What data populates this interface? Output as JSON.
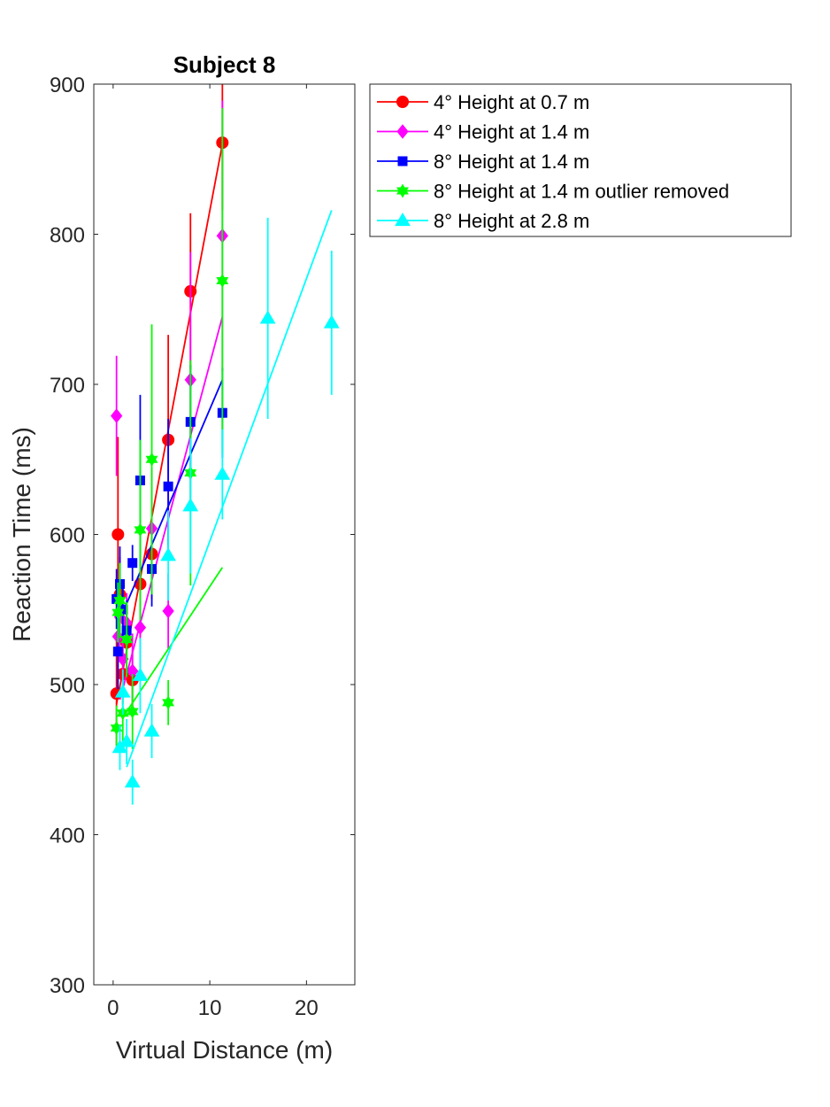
{
  "chart_data": {
    "type": "scatter",
    "title": "Subject 8",
    "xlabel": "Virtual Distance (m)",
    "ylabel": "Reaction Time (ms)",
    "xlim": [
      -2,
      25
    ],
    "ylim": [
      300,
      900
    ],
    "xticks": [
      0,
      10,
      20
    ],
    "yticks": [
      300,
      400,
      500,
      600,
      700,
      800,
      900
    ],
    "grid": false,
    "legend_position": "outside-top-right",
    "series": [
      {
        "name": "4° Height at 0.7 m",
        "color": "#ff0000",
        "marker": "circle",
        "points": [
          {
            "x": 0.35,
            "y": 494,
            "err": 35
          },
          {
            "x": 0.5,
            "y": 600,
            "err": 65
          },
          {
            "x": 0.7,
            "y": 560,
            "err": 25
          },
          {
            "x": 1.0,
            "y": 507,
            "err": 20
          },
          {
            "x": 1.4,
            "y": 528,
            "err": 25
          },
          {
            "x": 2.0,
            "y": 503,
            "err": 20
          },
          {
            "x": 2.8,
            "y": 567,
            "err": 35
          },
          {
            "x": 4.0,
            "y": 587,
            "err": 30
          },
          {
            "x": 5.7,
            "y": 663,
            "err": 70
          },
          {
            "x": 8.0,
            "y": 762,
            "err": 52
          },
          {
            "x": 11.3,
            "y": 861,
            "err": 45
          }
        ],
        "fit": {
          "x": [
            0.35,
            11.3
          ],
          "y": [
            487,
            860
          ]
        }
      },
      {
        "name": "4° Height at 1.4 m",
        "color": "#ff00ff",
        "marker": "diamond",
        "points": [
          {
            "x": 0.35,
            "y": 679,
            "err": 40
          },
          {
            "x": 0.5,
            "y": 532,
            "err": 25
          },
          {
            "x": 0.7,
            "y": 545,
            "err": 30
          },
          {
            "x": 1.0,
            "y": 517,
            "err": 20
          },
          {
            "x": 1.4,
            "y": 541,
            "err": 20
          },
          {
            "x": 2.0,
            "y": 509,
            "err": 25
          },
          {
            "x": 2.8,
            "y": 538,
            "err": 30
          },
          {
            "x": 4.0,
            "y": 604,
            "err": 40
          },
          {
            "x": 5.7,
            "y": 549,
            "err": 25
          },
          {
            "x": 8.0,
            "y": 703,
            "err": 85
          },
          {
            "x": 11.3,
            "y": 799,
            "err": 90
          }
        ],
        "fit": {
          "x": [
            0.7,
            11.3
          ],
          "y": [
            490,
            745
          ]
        }
      },
      {
        "name": "8° Height at 1.4 m",
        "color": "#0000ff",
        "marker": "square",
        "points": [
          {
            "x": 0.35,
            "y": 557,
            "err": 20
          },
          {
            "x": 0.5,
            "y": 522,
            "err": 25
          },
          {
            "x": 0.7,
            "y": 567,
            "err": 25
          },
          {
            "x": 1.0,
            "y": 550,
            "err": 20
          },
          {
            "x": 1.4,
            "y": 536,
            "err": 20
          },
          {
            "x": 2.0,
            "y": 581,
            "err": 12
          },
          {
            "x": 2.8,
            "y": 636,
            "err": 57
          },
          {
            "x": 4.0,
            "y": 577,
            "err": 25
          },
          {
            "x": 5.7,
            "y": 632,
            "err": 45
          },
          {
            "x": 8.0,
            "y": 675,
            "err": 38
          },
          {
            "x": 11.3,
            "y": 681,
            "err": 30
          }
        ],
        "fit": {
          "x": [
            1.0,
            11.3
          ],
          "y": [
            548,
            703
          ]
        }
      },
      {
        "name": "8° Height at 1.4 m outlier removed",
        "color": "#00ff00",
        "marker": "hexagram",
        "points": [
          {
            "x": 0.35,
            "y": 471,
            "err": 15
          },
          {
            "x": 0.5,
            "y": 548,
            "err": 20
          },
          {
            "x": 0.7,
            "y": 556,
            "err": 25
          },
          {
            "x": 1.0,
            "y": 481,
            "err": 20
          },
          {
            "x": 1.4,
            "y": 530,
            "err": 25
          },
          {
            "x": 2.0,
            "y": 482,
            "err": 25
          },
          {
            "x": 2.8,
            "y": 603,
            "err": 60
          },
          {
            "x": 4.0,
            "y": 650,
            "err": 90
          },
          {
            "x": 5.7,
            "y": 488,
            "err": 15
          },
          {
            "x": 8.0,
            "y": 641,
            "err": 75
          },
          {
            "x": 11.3,
            "y": 769,
            "err": 115
          }
        ],
        "fit": {
          "x": [
            1.0,
            11.3
          ],
          "y": [
            478,
            578
          ]
        }
      },
      {
        "name": "8° Height at 2.8 m",
        "color": "#00ffff",
        "marker": "triangle",
        "points": [
          {
            "x": 0.7,
            "y": 458,
            "err": 15
          },
          {
            "x": 1.0,
            "y": 495,
            "err": 15
          },
          {
            "x": 1.4,
            "y": 462,
            "err": 15
          },
          {
            "x": 2.0,
            "y": 435,
            "err": 15
          },
          {
            "x": 2.8,
            "y": 506,
            "err": 25
          },
          {
            "x": 4.0,
            "y": 469,
            "err": 18
          },
          {
            "x": 5.7,
            "y": 586,
            "err": 30
          },
          {
            "x": 8.0,
            "y": 619,
            "err": 45
          },
          {
            "x": 11.3,
            "y": 640,
            "err": 30
          },
          {
            "x": 16.0,
            "y": 744,
            "err": 67
          },
          {
            "x": 22.6,
            "y": 741,
            "err": 48
          }
        ],
        "fit": {
          "x": [
            1.4,
            22.6
          ],
          "y": [
            445,
            816
          ]
        }
      }
    ]
  }
}
